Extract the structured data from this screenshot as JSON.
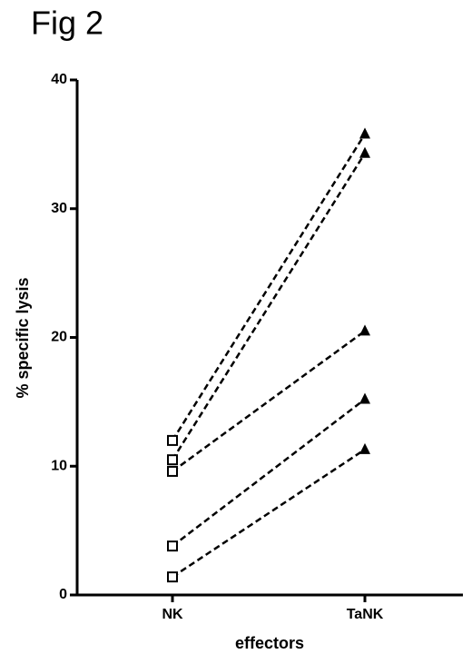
{
  "chart_data": {
    "type": "line",
    "title": "Fig 2",
    "y_label": "% specific lysis",
    "x_label": "effectors",
    "categories": [
      "NK",
      "TaNK"
    ],
    "series": [
      {
        "color": "#000000",
        "values": [
          12.0,
          35.8
        ]
      },
      {
        "color": "#000000",
        "values": [
          10.5,
          34.3
        ]
      },
      {
        "color": "#000000",
        "values": [
          9.6,
          20.5
        ]
      },
      {
        "color": "#000000",
        "values": [
          3.8,
          15.2
        ]
      },
      {
        "color": "#000000",
        "values": [
          1.4,
          11.3
        ]
      }
    ],
    "ylim": [
      0,
      40
    ],
    "yticks": [
      0,
      10,
      20,
      30,
      40
    ],
    "grid": false
  }
}
